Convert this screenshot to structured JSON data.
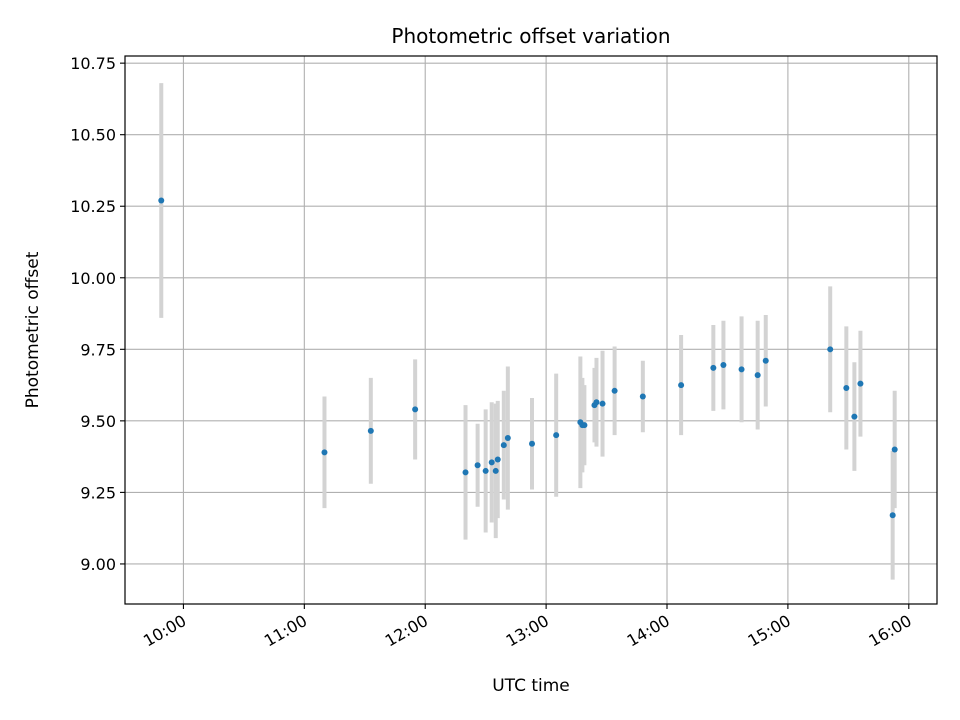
{
  "chart_data": {
    "type": "scatter",
    "title": "Photometric offset variation",
    "xlabel": "UTC time",
    "ylabel": "Photometric offset",
    "x_ticks": [
      "10:00",
      "11:00",
      "12:00",
      "13:00",
      "14:00",
      "15:00",
      "16:00"
    ],
    "y_ticks": [
      "9.00",
      "9.25",
      "9.50",
      "9.75",
      "10.00",
      "10.25",
      "10.50",
      "10.75"
    ],
    "xlim": [
      "09:31",
      "16:14"
    ],
    "ylim": [
      8.86,
      10.775
    ],
    "grid": true,
    "point_color": "#1f77b4",
    "errorbar_color": "#d3d3d3",
    "points": [
      {
        "t": "09:49",
        "y": 10.27,
        "err": 0.41
      },
      {
        "t": "11:10",
        "y": 9.39,
        "err": 0.195
      },
      {
        "t": "11:33",
        "y": 9.465,
        "err": 0.185
      },
      {
        "t": "11:55",
        "y": 9.54,
        "err": 0.175
      },
      {
        "t": "12:20",
        "y": 9.32,
        "err": 0.235
      },
      {
        "t": "12:26",
        "y": 9.345,
        "err": 0.145
      },
      {
        "t": "12:30",
        "y": 9.325,
        "err": 0.215
      },
      {
        "t": "12:33",
        "y": 9.355,
        "err": 0.21
      },
      {
        "t": "12:35",
        "y": 9.325,
        "err": 0.235
      },
      {
        "t": "12:36",
        "y": 9.365,
        "err": 0.205
      },
      {
        "t": "12:39",
        "y": 9.415,
        "err": 0.19
      },
      {
        "t": "12:41",
        "y": 9.44,
        "err": 0.25
      },
      {
        "t": "12:53",
        "y": 9.42,
        "err": 0.16
      },
      {
        "t": "13:05",
        "y": 9.45,
        "err": 0.215
      },
      {
        "t": "13:17",
        "y": 9.495,
        "err": 0.23
      },
      {
        "t": "13:18",
        "y": 9.485,
        "err": 0.165
      },
      {
        "t": "13:19",
        "y": 9.485,
        "err": 0.14
      },
      {
        "t": "13:24",
        "y": 9.555,
        "err": 0.13
      },
      {
        "t": "13:25",
        "y": 9.565,
        "err": 0.155
      },
      {
        "t": "13:28",
        "y": 9.56,
        "err": 0.185
      },
      {
        "t": "13:34",
        "y": 9.605,
        "err": 0.155
      },
      {
        "t": "13:48",
        "y": 9.585,
        "err": 0.125
      },
      {
        "t": "14:07",
        "y": 9.625,
        "err": 0.175
      },
      {
        "t": "14:23",
        "y": 9.685,
        "err": 0.15
      },
      {
        "t": "14:28",
        "y": 9.695,
        "err": 0.155
      },
      {
        "t": "14:37",
        "y": 9.68,
        "err": 0.185
      },
      {
        "t": "14:45",
        "y": 9.66,
        "err": 0.19
      },
      {
        "t": "14:49",
        "y": 9.71,
        "err": 0.16
      },
      {
        "t": "15:21",
        "y": 9.75,
        "err": 0.22
      },
      {
        "t": "15:29",
        "y": 9.615,
        "err": 0.215
      },
      {
        "t": "15:33",
        "y": 9.515,
        "err": 0.19
      },
      {
        "t": "15:36",
        "y": 9.63,
        "err": 0.185
      },
      {
        "t": "15:52",
        "y": 9.17,
        "err": 0.225
      },
      {
        "t": "15:53",
        "y": 9.4,
        "err": 0.205
      }
    ]
  }
}
